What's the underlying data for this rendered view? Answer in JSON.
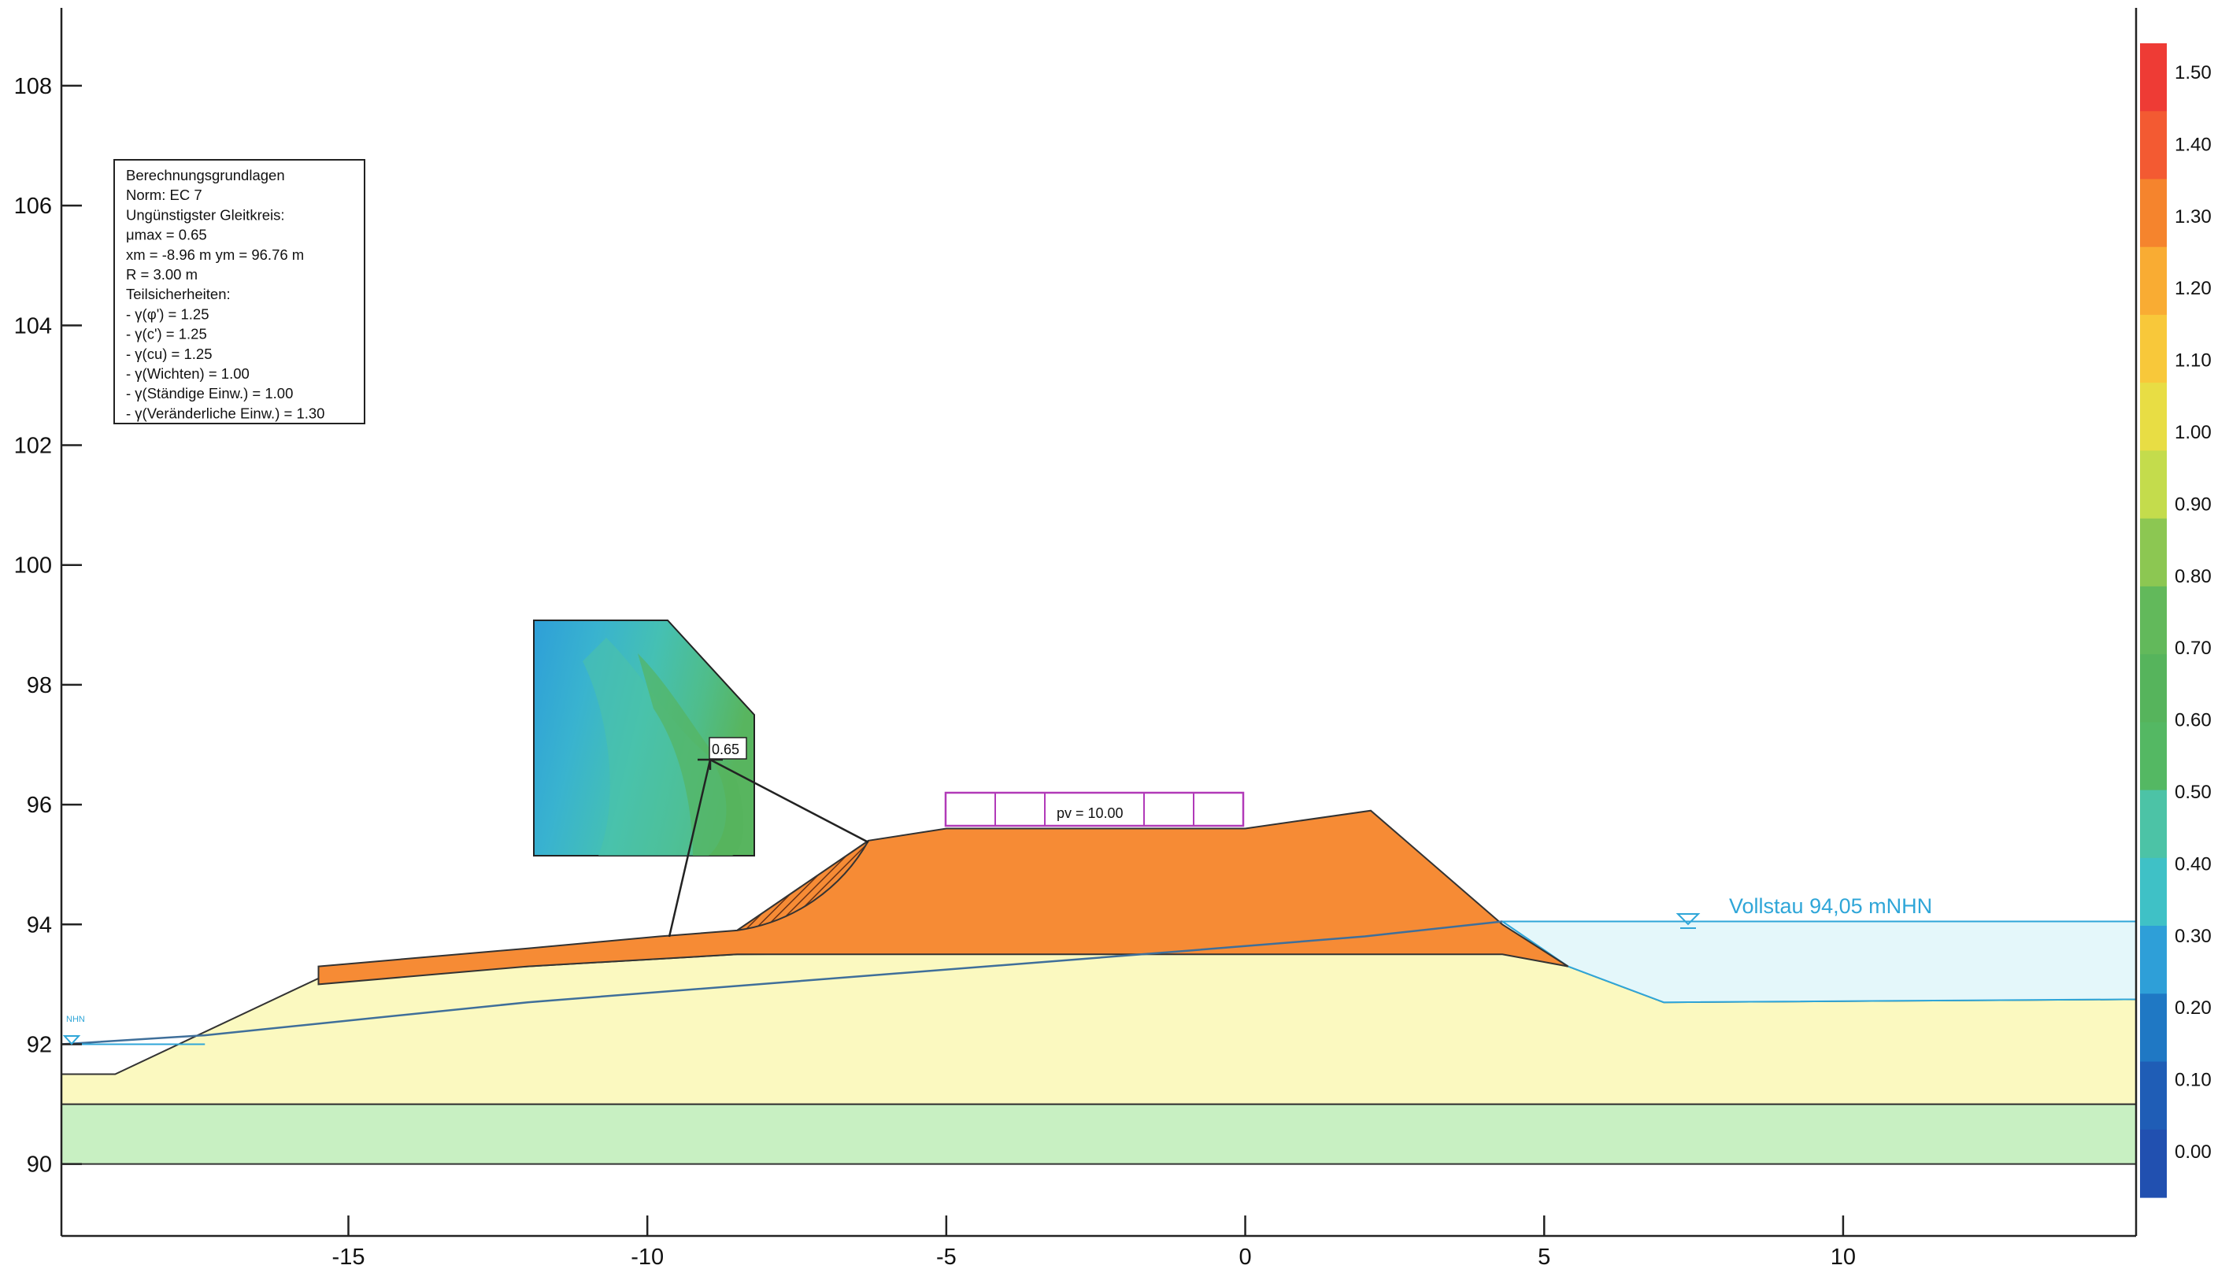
{
  "chart_data": {
    "type": "slope-stability-section",
    "x_ticks": [
      "-15",
      "-10",
      "-5",
      "0",
      "5",
      "10"
    ],
    "y_ticks": [
      "108",
      "106",
      "104",
      "102",
      "100",
      "98",
      "96",
      "94",
      "92",
      "90"
    ],
    "xlim": [
      -19.8,
      14.9
    ],
    "ylim": [
      88.8,
      109.3
    ],
    "scale": {
      "labels": [
        "1.50",
        "1.40",
        "1.30",
        "1.20",
        "1.10",
        "1.00",
        "0.90",
        "0.80",
        "0.70",
        "0.60",
        "0.50",
        "0.40",
        "0.30",
        "0.20",
        "0.10",
        "0.00"
      ],
      "colors": [
        "#ee3b35",
        "#f35a32",
        "#f5842d",
        "#f9ac33",
        "#f8c83a",
        "#e8dd44",
        "#c4dc4c",
        "#8cc752",
        "#62b95b",
        "#56b45c",
        "#54b863",
        "#4cc3a6",
        "#3fc1c6",
        "#2e9fd8",
        "#1f78c4",
        "#1f5db6",
        "#2150b0"
      ]
    },
    "info_box": {
      "lines": [
        "Berechnungsgrundlagen",
        "Norm:  EC 7",
        "Ungünstigster Gleitkreis:",
        "μmax = 0.65",
        "xm = -8.96 m   ym = 96.76 m",
        "R = 3.00 m",
        "Teilsicherheiten:",
        " - γ(φ') = 1.25",
        " - γ(c') = 1.25",
        " - γ(cu) = 1.25",
        " - γ(Wichten) = 1.00",
        " - γ(Ständige Einw.) = 1.00",
        " - γ(Veränderliche Einw.) = 1.30"
      ]
    },
    "critical_circle": {
      "mu": "0.65",
      "xm": -8.96,
      "ym": 96.76,
      "R": 3.0
    },
    "load": {
      "label": "pv = 10.00",
      "x_from": -5.0,
      "x_to": 0.0
    },
    "water_right": {
      "label": "Vollstau 94,05 mNHN",
      "level": 94.05
    },
    "water_left": {
      "label": "NHN",
      "level": 92.0
    },
    "layers": [
      {
        "name": "dike-body",
        "color": "#f68b35",
        "outline": [
          [
            -15.5,
            93.3
          ],
          [
            -12.0,
            93.6
          ],
          [
            -9.8,
            93.8
          ],
          [
            -8.5,
            93.9
          ],
          [
            -6.3,
            95.4
          ],
          [
            -5.0,
            95.6
          ],
          [
            0.0,
            95.6
          ],
          [
            2.1,
            95.9
          ],
          [
            4.3,
            94.0
          ],
          [
            5.4,
            93.3
          ],
          [
            4.3,
            93.5
          ],
          [
            -1.1,
            93.5
          ],
          [
            -8.5,
            93.5
          ],
          [
            -12.0,
            93.3
          ],
          [
            -15.5,
            93.0
          ]
        ]
      },
      {
        "name": "sand-layer",
        "color": "#fbf9c0",
        "outline": [
          [
            -19.8,
            91.5
          ],
          [
            -18.9,
            91.5
          ],
          [
            -15.5,
            93.1
          ],
          [
            -12.0,
            93.3
          ],
          [
            -8.5,
            93.5
          ],
          [
            -1.1,
            93.55
          ],
          [
            4.3,
            93.55
          ],
          [
            5.4,
            93.3
          ],
          [
            7.0,
            92.7
          ],
          [
            14.9,
            92.75
          ],
          [
            14.9,
            91.0
          ],
          [
            -19.8,
            91.0
          ]
        ]
      },
      {
        "name": "green-layer",
        "color": "#c8f0c2",
        "y_bottom": 90.0,
        "y_top": 91.0
      },
      {
        "name": "water-right",
        "color": "#e4f7fa",
        "outline": [
          [
            4.3,
            94.05
          ],
          [
            14.9,
            94.05
          ],
          [
            14.9,
            92.75
          ],
          [
            7.0,
            92.7
          ],
          [
            5.4,
            93.3
          ]
        ]
      }
    ],
    "seepage_line": [
      [
        -19.8,
        92.0
      ],
      [
        -17.4,
        92.15
      ],
      [
        -12.0,
        92.7
      ],
      [
        -1.1,
        93.55
      ],
      [
        2.0,
        93.8
      ],
      [
        4.3,
        94.05
      ]
    ]
  }
}
